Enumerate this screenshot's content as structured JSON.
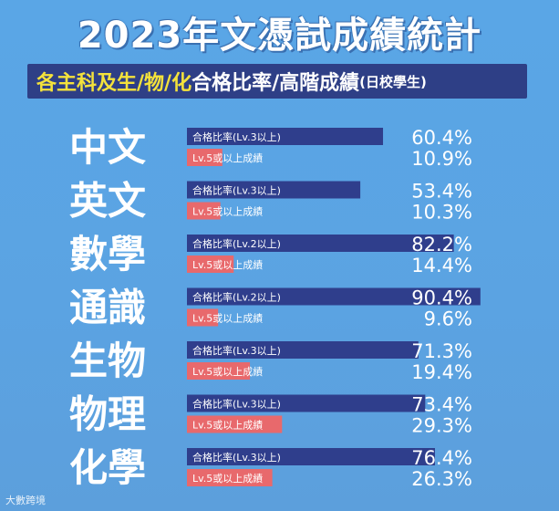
{
  "title": "2023年文憑試成績統計",
  "subtitle_main": "各主科及生/物/化",
  "subtitle_mid": "合格比率/高階成績",
  "subtitle_small": "(日校學生)",
  "watermark": "大數跨境",
  "colors": {
    "background": "#5aa6e6",
    "pass_bar": "#2f3e8c",
    "high_bar": "#e8696c",
    "subtitle_bg": "#2e3f86",
    "subtitle_highlight": "#f4e23b"
  },
  "chart_data": {
    "type": "bar",
    "orientation": "horizontal",
    "title": "2023年文憑試成績統計",
    "subtitle": "各主科及生/物/化合格比率/高階成績(日校學生)",
    "value_format": "percent",
    "xlim": [
      0,
      100
    ],
    "grid": false,
    "categories": [
      "中文",
      "英文",
      "數學",
      "通識",
      "生物",
      "物理",
      "化學"
    ],
    "series": [
      {
        "name": "合格比率",
        "labels": [
          "合格比率(Lv.3以上)",
          "合格比率(Lv.3以上)",
          "合格比率(Lv.2以上)",
          "合格比率(Lv.2以上)",
          "合格比率(Lv.3以上)",
          "合格比率(Lv.3以上)",
          "合格比率(Lv.3以上)"
        ],
        "values": [
          60.4,
          53.4,
          82.2,
          90.4,
          71.3,
          73.4,
          76.4
        ],
        "value_labels": [
          "60.4%",
          "53.4%",
          "82.2%",
          "90.4%",
          "71.3%",
          "73.4%",
          "76.4%"
        ]
      },
      {
        "name": "Lv.5或以上成績",
        "labels": [
          "Lv.5或以上成績",
          "Lv.5或以上成績",
          "Lv.5或以上成績",
          "Lv.5或以上成績",
          "Lv.5或以上成績",
          "Lv.5或以上成績",
          "Lv.5或以上成績"
        ],
        "values": [
          10.9,
          10.3,
          14.4,
          9.6,
          19.4,
          29.3,
          26.3
        ],
        "value_labels": [
          "10.9%",
          "10.3%",
          "14.4%",
          "9.6%",
          "19.4%",
          "29.3%",
          "26.3%"
        ]
      }
    ]
  }
}
